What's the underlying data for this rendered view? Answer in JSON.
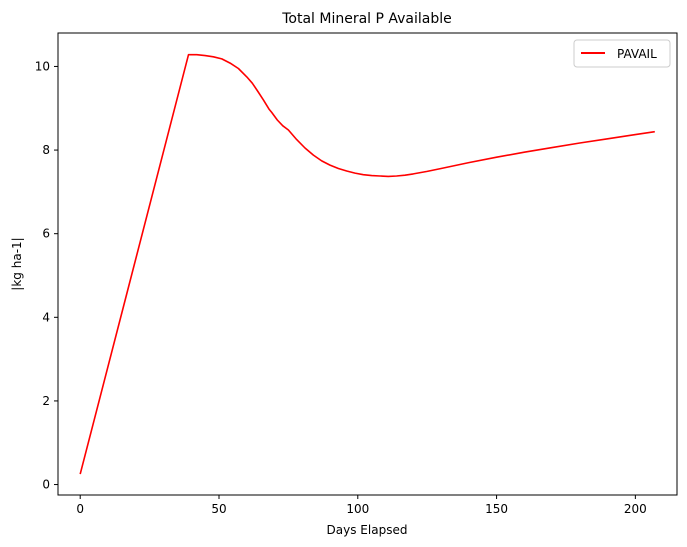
{
  "chart_data": {
    "type": "line",
    "title": "Total Mineral P Available",
    "xlabel": "Days Elapsed",
    "ylabel": "|kg ha-1|",
    "xlim": [
      -8,
      215
    ],
    "ylim": [
      -0.25,
      10.8
    ],
    "xticks": [
      0,
      50,
      100,
      150,
      200
    ],
    "yticks": [
      0,
      2,
      4,
      6,
      8,
      10
    ],
    "grid": false,
    "legend_position": "top-right",
    "series": [
      {
        "name": "PAVAIL",
        "color": "#ff0000",
        "x": [
          0,
          39,
          42,
          45,
          48,
          51,
          54,
          57,
          60,
          62,
          64,
          66,
          68,
          69,
          71,
          73,
          75,
          78,
          81,
          84,
          87,
          90,
          93,
          96,
          99,
          102,
          105,
          108,
          111,
          114,
          117,
          120,
          125,
          130,
          140,
          150,
          160,
          170,
          180,
          190,
          200,
          207
        ],
        "y": [
          0.25,
          10.28,
          10.28,
          10.26,
          10.23,
          10.18,
          10.08,
          9.95,
          9.75,
          9.6,
          9.4,
          9.2,
          8.98,
          8.9,
          8.72,
          8.58,
          8.48,
          8.25,
          8.05,
          7.88,
          7.74,
          7.64,
          7.56,
          7.5,
          7.45,
          7.41,
          7.39,
          7.38,
          7.37,
          7.38,
          7.4,
          7.43,
          7.49,
          7.56,
          7.7,
          7.83,
          7.95,
          8.06,
          8.17,
          8.27,
          8.37,
          8.44
        ]
      }
    ]
  }
}
